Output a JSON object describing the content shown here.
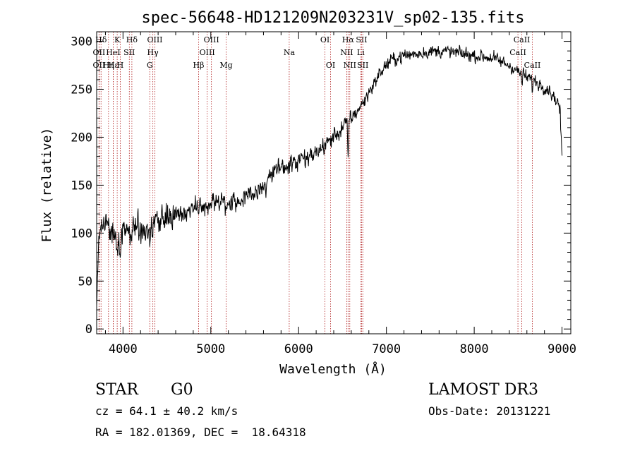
{
  "chart_data": {
    "type": "line",
    "title": "spec-56648-HD121209N203231V_sp02-135.fits",
    "xlabel": "Wavelength (Å)",
    "ylabel": "Flux (relative)",
    "xlim": [
      3700,
      9100
    ],
    "ylim": [
      -5,
      310
    ],
    "xticks": [
      4000,
      5000,
      6000,
      7000,
      8000,
      9000
    ],
    "yticks": [
      0,
      50,
      100,
      150,
      200,
      250,
      300
    ],
    "minor_xstep": 200,
    "minor_ystep": 10,
    "grid": false,
    "line_color": "#000000",
    "marker_color": "#b22222",
    "series": [
      {
        "name": "flux",
        "continuum": [
          [
            3700,
            20
          ],
          [
            3720,
            95
          ],
          [
            3760,
            110
          ],
          [
            3850,
            100
          ],
          [
            3950,
            100
          ],
          [
            4050,
            108
          ],
          [
            4150,
            108
          ],
          [
            4250,
            103
          ],
          [
            4350,
            110
          ],
          [
            4500,
            115
          ],
          [
            4700,
            122
          ],
          [
            4850,
            127
          ],
          [
            5000,
            130
          ],
          [
            5150,
            133
          ],
          [
            5300,
            135
          ],
          [
            5450,
            140
          ],
          [
            5550,
            145
          ],
          [
            5650,
            158
          ],
          [
            5800,
            170
          ],
          [
            5950,
            173
          ],
          [
            6050,
            175
          ],
          [
            6150,
            180
          ],
          [
            6300,
            192
          ],
          [
            6450,
            205
          ],
          [
            6550,
            215
          ],
          [
            6650,
            225
          ],
          [
            6750,
            238
          ],
          [
            6850,
            255
          ],
          [
            6950,
            270
          ],
          [
            7050,
            280
          ],
          [
            7200,
            285
          ],
          [
            7400,
            288
          ],
          [
            7600,
            290
          ],
          [
            7800,
            288
          ],
          [
            8000,
            285
          ],
          [
            8200,
            283
          ],
          [
            8400,
            275
          ],
          [
            8550,
            265
          ],
          [
            8700,
            258
          ],
          [
            8850,
            250
          ],
          [
            8960,
            235
          ],
          [
            9000,
            215
          ]
        ],
        "features": [
          {
            "center": 3934,
            "depth": 30,
            "width": 12
          },
          {
            "center": 3969,
            "depth": 28,
            "width": 12
          },
          {
            "center": 4101,
            "depth": 12,
            "width": 8
          },
          {
            "center": 4305,
            "depth": 14,
            "width": 10
          },
          {
            "center": 4340,
            "depth": 8,
            "width": 6
          },
          {
            "center": 4861,
            "depth": 8,
            "width": 6
          },
          {
            "center": 5175,
            "depth": 10,
            "width": 15
          },
          {
            "center": 5630,
            "depth": 18,
            "width": 8
          },
          {
            "center": 5890,
            "depth": 10,
            "width": 10
          },
          {
            "center": 6563,
            "depth": 38,
            "width": 8
          },
          {
            "center": 8542,
            "depth": 10,
            "width": 6
          },
          {
            "center": 8662,
            "depth": 8,
            "width": 6
          }
        ],
        "noise": {
          "blue": 14,
          "mid": 10,
          "red": 7,
          "seed": 56648
        }
      }
    ],
    "lines": [
      {
        "label": "Hδ",
        "x": 3750,
        "row": 0
      },
      {
        "label": "K",
        "x": 3934,
        "row": 0
      },
      {
        "label": "Hδ",
        "x": 4101,
        "row": 0
      },
      {
        "label": "OIII",
        "x": 4363,
        "row": 0
      },
      {
        "label": "OIII",
        "x": 5007,
        "row": 0
      },
      {
        "label": "OI",
        "x": 6300,
        "row": 0
      },
      {
        "label": "Hα",
        "x": 6563,
        "row": 0
      },
      {
        "label": "SII",
        "x": 6717,
        "row": 0
      },
      {
        "label": "CaII",
        "x": 8542,
        "row": 0
      },
      {
        "label": "OII",
        "x": 3727,
        "row": 1
      },
      {
        "label": "HeI",
        "x": 3889,
        "row": 1
      },
      {
        "label": "SII",
        "x": 4072,
        "row": 1
      },
      {
        "label": "Hγ",
        "x": 4340,
        "row": 1
      },
      {
        "label": "OIII",
        "x": 4959,
        "row": 1
      },
      {
        "label": "Na",
        "x": 5893,
        "row": 1
      },
      {
        "label": "NII",
        "x": 6548,
        "row": 1
      },
      {
        "label": "Li",
        "x": 6708,
        "row": 1
      },
      {
        "label": "CaII",
        "x": 8498,
        "row": 1
      },
      {
        "label": "OII",
        "x": 3727,
        "row": 2
      },
      {
        "label": "Hε",
        "x": 3889,
        "row": 2
      },
      {
        "label": "Hη",
        "x": 3835,
        "row": 2
      },
      {
        "label": "H",
        "x": 3969,
        "row": 2
      },
      {
        "label": "G",
        "x": 4305,
        "row": 2
      },
      {
        "label": "Hβ",
        "x": 4861,
        "row": 2
      },
      {
        "label": "Mg",
        "x": 5175,
        "row": 2
      },
      {
        "label": "OI",
        "x": 6364,
        "row": 2
      },
      {
        "label": "NII",
        "x": 6583,
        "row": 2
      },
      {
        "label": "SII",
        "x": 6731,
        "row": 2
      },
      {
        "label": "CaII",
        "x": 8662,
        "row": 2
      }
    ]
  },
  "info": {
    "obj_class": "STAR",
    "subclass": "G0",
    "survey": "LAMOST DR3",
    "cz": "cz = 64.1 ± 40.2 km/s",
    "obs_date": "Obs-Date: 20131221",
    "coords": "RA = 182.01369, DEC =  18.64318"
  }
}
